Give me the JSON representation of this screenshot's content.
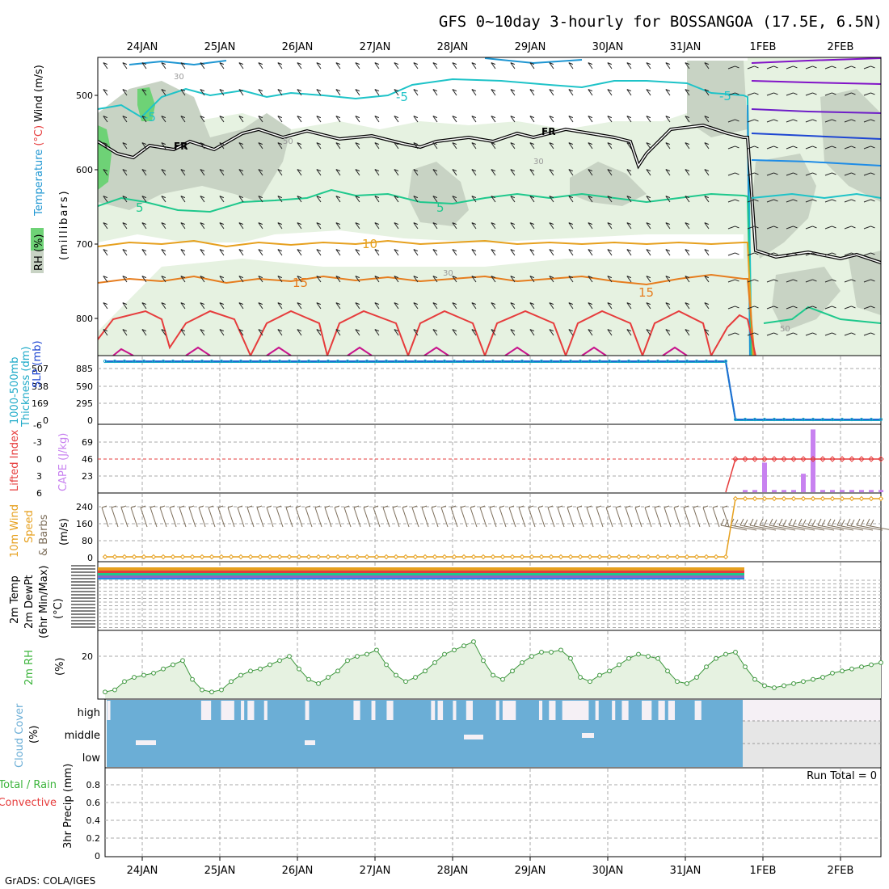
{
  "title": "GFS 0~10day 3-hourly for BOSSANGOA (17.5E, 6.5N)",
  "credit": "GrADS: COLA/IGES",
  "colors": {
    "rh_light": "#e6f2e1",
    "rh_mid": "#c8d3c4",
    "rh_dark": "#6ed276",
    "freezing": "#000000",
    "cyan": "#1ec3c8",
    "green_t": "#1ec88c",
    "orange10": "#e6a01e",
    "orange15": "#e67d1e",
    "red20": "#e63c3c",
    "magenta": "#c8148c",
    "slp": "#1e6ed2",
    "thick": "#1eaac8",
    "cape": "#c882f0",
    "li": "#e63c3c",
    "wind": "#e6a01e",
    "barb": "#7d6e5a",
    "cloud": "#6baed6",
    "cloud_missing": "#e6e6e6",
    "grid": "#aaaaaa"
  },
  "dates": [
    "24JAN",
    "25JAN",
    "26JAN",
    "27JAN",
    "28JAN",
    "29JAN",
    "30JAN",
    "31JAN",
    "1FEB",
    "2FEB"
  ],
  "panels": {
    "upper_air": {
      "rh_label": "RH (%)",
      "temp_label": "Temperature",
      "temp_unit": "(°C)",
      "wind_label": "Wind (m/s)",
      "pressure_label": "(millibars)",
      "y_ticks": [
        "500",
        "600",
        "700",
        "800"
      ],
      "contour_labels": {
        "fr1": "FR",
        "fr2": "FR",
        "m5a": "-5",
        "m5b": "-5",
        "m5c": "-5",
        "p5a": "5",
        "p5b": "5",
        "p10": "10",
        "p15a": "15",
        "p15b": "15",
        "rh30a": "30",
        "rh30b": "30",
        "rh30c": "30",
        "rh50": "50",
        "rh50b": "50"
      }
    },
    "slp": {
      "label_thick": "1000-500mb",
      "label_thick2": "Thickness (dm)",
      "label_slp": "SLP (mb)",
      "thickness_ticks": [
        "507",
        "338",
        "169",
        "0"
      ],
      "slp_ticks": [
        "885",
        "590",
        "295",
        "0"
      ]
    },
    "stability": {
      "label_li": "Lifted Index",
      "label_cape": "CAPE (J/kg)",
      "li_ticks": [
        "-6",
        "-3",
        "0",
        "3",
        "6"
      ],
      "cape_ticks": [
        "69",
        "46",
        "23"
      ]
    },
    "wind10m": {
      "label1": "10m Wind",
      "label2": "Speed",
      "label3": "& Barbs",
      "unit": "(m/s)",
      "ticks": [
        "240",
        "160",
        "80",
        "0"
      ]
    },
    "temp2m": {
      "label1": "2m Temp",
      "label2": "2m DewPt",
      "label3": "(6hr Min/Max)",
      "unit": "(°C)"
    },
    "rh2m": {
      "label": "2m RH",
      "unit": "(%)",
      "ticks": [
        "20"
      ]
    },
    "cloud": {
      "label": "Cloud Cover",
      "unit": "(%)",
      "levels": [
        "high",
        "middle",
        "low"
      ]
    },
    "precip": {
      "label1": "Total / Rain",
      "label2": "Convective",
      "label3": "3hr Precip (mm)",
      "run_total": "Run Total = 0",
      "ticks": [
        "0.8",
        "0.6",
        "0.4",
        "0.2",
        "0"
      ]
    }
  },
  "chart_data": {
    "type": "line",
    "x_dates": [
      "24JAN",
      "25JAN",
      "26JAN",
      "27JAN",
      "28JAN",
      "29JAN",
      "30JAN",
      "31JAN",
      "1FEB",
      "2FEB"
    ],
    "steps_per_day": 8,
    "first_step_offset_steps": -4,
    "n_steps": 81,
    "break_step": 64,
    "rh2m": {
      "unit": "%",
      "ylim": [
        0,
        32
      ],
      "values": [
        3,
        4,
        8,
        10,
        11,
        12,
        14,
        16,
        18,
        9,
        4,
        3,
        4,
        8,
        11,
        13,
        14,
        16,
        18,
        20,
        14,
        9,
        7,
        10,
        13,
        18,
        20,
        21,
        23,
        16,
        11,
        8,
        10,
        13,
        17,
        21,
        23,
        25,
        27,
        18,
        11,
        9,
        13,
        17,
        20,
        22,
        22,
        23,
        19,
        10,
        8,
        11,
        13,
        16,
        19,
        21,
        20,
        19,
        13,
        8,
        7,
        10,
        15,
        19,
        21,
        22,
        15,
        9,
        6,
        5,
        6,
        7,
        8,
        9,
        10,
        12,
        13,
        14,
        15,
        16,
        17
      ]
    },
    "slp": {
      "unit": "mb",
      "ylim": [
        0,
        1000
      ],
      "values_first": 948,
      "values_after_break": 7
    },
    "thickness": {
      "unit": "dm",
      "ylim": [
        0,
        560
      ],
      "values_first": 533,
      "values_after_break": 4
    },
    "wind10m": {
      "unit": "m/s",
      "ylim": [
        0,
        280
      ],
      "values_first": 3,
      "values_after_break": 273
    },
    "lifted_index": {
      "ylim": [
        6,
        -6
      ],
      "values_first": null,
      "values_after_break": 0
    },
    "cape": {
      "unit": "J/kg",
      "ylim": [
        0,
        92
      ],
      "values_after_break": [
        0,
        3,
        3,
        40,
        3,
        3,
        3,
        25,
        85,
        3,
        3,
        3,
        3,
        3,
        3,
        3
      ]
    },
    "cloud_high": {
      "unit": "%",
      "segments": [
        [
          27.3,
          27.8
        ],
        [
          41.5,
          43.0
        ],
        [
          44.5,
          46.5
        ],
        [
          47.5,
          48.0
        ],
        [
          48.5,
          49.5
        ],
        [
          51.0,
          51.5
        ],
        [
          57.2,
          57.8
        ],
        [
          64.5,
          65.5
        ],
        [
          67.2,
          67.8
        ],
        [
          69.5,
          70.5
        ],
        [
          76.2,
          76.8
        ],
        [
          77.2,
          78.0
        ],
        [
          79.5,
          80.0
        ],
        [
          81.5,
          82.5
        ],
        [
          86.0,
          86.5
        ],
        [
          87.0,
          89.0
        ],
        [
          92.5,
          93.0
        ],
        [
          94.0,
          95.0
        ],
        [
          96.0,
          100.0
        ],
        [
          101.0,
          101.5
        ],
        [
          103.5,
          104.0
        ],
        [
          105.0,
          106.0
        ],
        [
          108.0,
          109.5
        ],
        [
          110.5,
          111.5
        ],
        [
          112.0,
          113.0
        ],
        [
          116.0,
          117.0
        ]
      ]
    },
    "precip": {
      "unit": "mm",
      "ylim": [
        0,
        1
      ],
      "run_total": 0
    }
  }
}
